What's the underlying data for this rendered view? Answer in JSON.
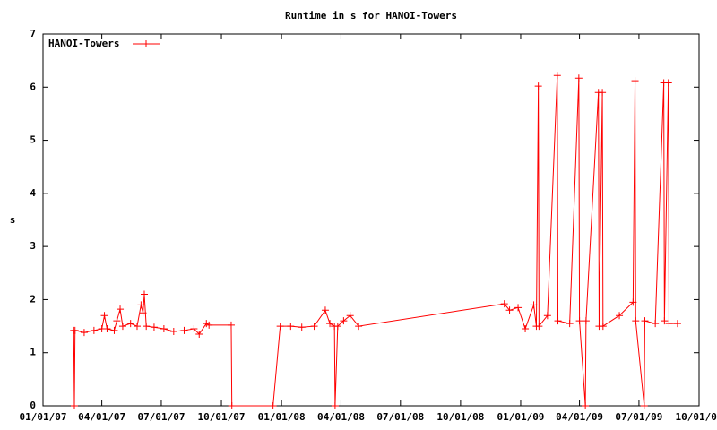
{
  "chart_data": {
    "type": "line",
    "title": "Runtime in s for HANOI-Towers",
    "ylabel": "s",
    "xlim": [
      "01/01/07",
      "10/01/09"
    ],
    "xticks": [
      "01/01/07",
      "04/01/07",
      "07/01/07",
      "10/01/07",
      "01/01/08",
      "04/01/08",
      "07/01/08",
      "10/01/08",
      "01/01/09",
      "04/01/09",
      "07/01/09",
      "10/01/09"
    ],
    "ylim": [
      0,
      7
    ],
    "yticks": [
      0,
      1,
      2,
      3,
      4,
      5,
      6,
      7
    ],
    "legend": "top-left",
    "x": [
      "02/17/07",
      "02/18/07",
      "02/19/07",
      "03/05/07",
      "03/20/07",
      "04/01/07",
      "04/05/07",
      "04/09/07",
      "04/20/07",
      "04/24/07",
      "04/29/07",
      "05/03/07",
      "05/15/07",
      "05/25/07",
      "05/31/07",
      "06/03/07",
      "06/05/07",
      "06/08/07",
      "06/20/07",
      "07/05/07",
      "07/20/07",
      "08/05/07",
      "08/20/07",
      "08/28/07",
      "09/08/07",
      "09/12/07",
      "10/16/07",
      "10/17/07",
      "12/19/07",
      "12/30/07",
      "01/15/08",
      "02/01/08",
      "02/20/08",
      "03/08/08",
      "03/15/08",
      "03/22/08",
      "03/23/08",
      "03/27/08",
      "04/05/08",
      "04/15/08",
      "04/28/08",
      "12/07/08",
      "12/15/08",
      "12/28/08",
      "01/08/09",
      "01/21/09",
      "01/25/09",
      "01/28/09",
      "01/29/09",
      "02/11/09",
      "02/26/09",
      "02/27/09",
      "03/17/09",
      "03/31/09",
      "04/01/09",
      "04/10/09",
      "04/11/09",
      "04/30/09",
      "05/01/09",
      "05/06/09",
      "05/07/09",
      "06/01/09",
      "06/22/09",
      "06/25/09",
      "06/26/09",
      "07/09/09",
      "07/10/09",
      "07/26/09",
      "08/08/09",
      "08/09/09",
      "08/15/09",
      "08/16/09",
      "08/29/09"
    ],
    "series": [
      {
        "name": "HANOI-Towers",
        "color": "#ff0000",
        "values": [
          1.42,
          0,
          1.42,
          1.38,
          1.42,
          1.45,
          1.7,
          1.45,
          1.42,
          1.6,
          1.82,
          1.5,
          1.55,
          1.5,
          1.9,
          1.75,
          2.1,
          1.5,
          1.48,
          1.45,
          1.4,
          1.42,
          1.45,
          1.35,
          1.55,
          1.52,
          1.52,
          0,
          0,
          1.5,
          1.5,
          1.48,
          1.5,
          1.8,
          1.55,
          1.5,
          0,
          1.5,
          1.6,
          1.7,
          1.5,
          1.92,
          1.8,
          1.85,
          1.45,
          1.9,
          1.5,
          6.02,
          1.5,
          1.7,
          6.22,
          1.6,
          1.55,
          6.17,
          1.6,
          0,
          1.6,
          5.9,
          1.5,
          5.9,
          1.5,
          1.7,
          1.95,
          6.12,
          1.6,
          0,
          1.6,
          1.55,
          6.08,
          1.6,
          6.08,
          1.55,
          1.55
        ]
      }
    ]
  }
}
